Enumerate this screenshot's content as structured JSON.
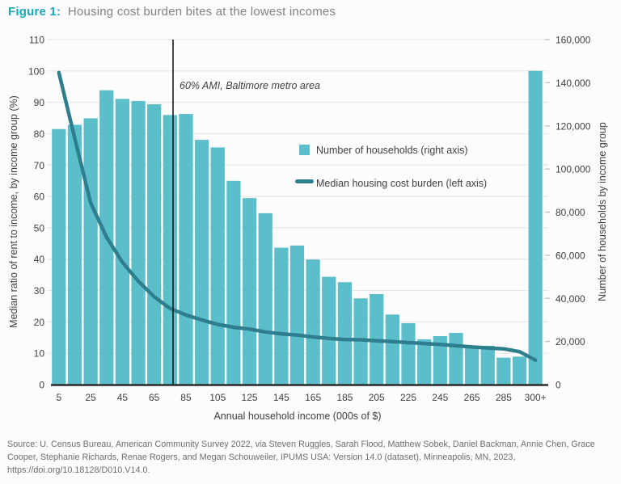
{
  "title": {
    "prefix": "Figure 1:",
    "text": "Housing cost burden bites at the lowest incomes"
  },
  "legend": {
    "bars_label": "Number of households (right axis)",
    "line_label": "Median housing cost burden (left axis)"
  },
  "annotation_text": "60% AMI, Baltimore metro area",
  "source_text": "Source: U. Census Bureau, American Community Survey 2022, via Steven Ruggles, Sarah Flood, Matthew Sobek, Daniel Backman, Annie Chen, Grace Cooper, Stephanie Richards, Renae Rogers, and Megan Schouweiler,  IPUMS USA: Version 14.0 (dataset), Minneapolis, MN, 2023, https://doi.org/10.18128/D010.V14.0.",
  "colors": {
    "bar": "#5abfca",
    "line": "#2f7e8e",
    "accent": "#17a8be",
    "gridline": "#e6e7e8",
    "axis_line": "#2b2b2b",
    "ami_line": "#1a1a1a",
    "tick_text": "#414042"
  },
  "chart_data": {
    "type": "bar+line",
    "categories": [
      "5",
      "15",
      "25",
      "35",
      "45",
      "55",
      "65",
      "75",
      "85",
      "95",
      "105",
      "115",
      "125",
      "135",
      "145",
      "155",
      "165",
      "175",
      "185",
      "195",
      "205",
      "215",
      "225",
      "235",
      "245",
      "255",
      "265",
      "275",
      "285",
      "295",
      "300+"
    ],
    "x_tick_labels": [
      "5",
      "25",
      "45",
      "65",
      "85",
      "105",
      "125",
      "145",
      "165",
      "185",
      "205",
      "225",
      "245",
      "265",
      "285",
      "300+"
    ],
    "series": [
      {
        "name": "Number of households (right axis)",
        "type": "bar",
        "axis": "right",
        "values": [
          118500,
          120500,
          123500,
          136500,
          132500,
          131500,
          130000,
          125000,
          125500,
          113500,
          110000,
          94500,
          86500,
          79500,
          63500,
          64500,
          58000,
          50000,
          47500,
          40000,
          42000,
          32500,
          28500,
          21000,
          22500,
          24000,
          18000,
          18000,
          12500,
          13000,
          145500
        ]
      },
      {
        "name": "Median housing cost burden (left axis)",
        "type": "line",
        "axis": "left",
        "values": [
          99.5,
          78.5,
          58,
          47,
          39,
          33,
          28,
          24.3,
          22.2,
          20.6,
          19.2,
          18.3,
          17.7,
          16.8,
          16.2,
          15.8,
          15.2,
          14.7,
          14.4,
          14.3,
          14.0,
          13.7,
          13.4,
          13.1,
          12.8,
          12.4,
          12.0,
          11.7,
          11.4,
          10.5,
          7.8
        ]
      }
    ],
    "left_axis": {
      "label": "Median ratio of rent to income, by income group (%)",
      "min": 0,
      "max": 110,
      "step": 10,
      "tick_labels": [
        "0",
        "10",
        "20",
        "30",
        "40",
        "50",
        "60",
        "70",
        "80",
        "90",
        "100",
        "110"
      ]
    },
    "right_axis": {
      "label": "Number of households by income group",
      "min": 0,
      "max": 160000,
      "step": 20000,
      "tick_labels": [
        "0",
        "20,000",
        "40,000",
        "60,000",
        "80,000",
        "100,000",
        "120,000",
        "140,000",
        "160,000"
      ]
    },
    "x_axis": {
      "label": "Annual household income (000s of $)"
    },
    "annotation": {
      "text": "60% AMI, Baltimore metro area",
      "x_category": "75"
    },
    "grid": "horizontal",
    "legend_position": "inside-top-right"
  }
}
